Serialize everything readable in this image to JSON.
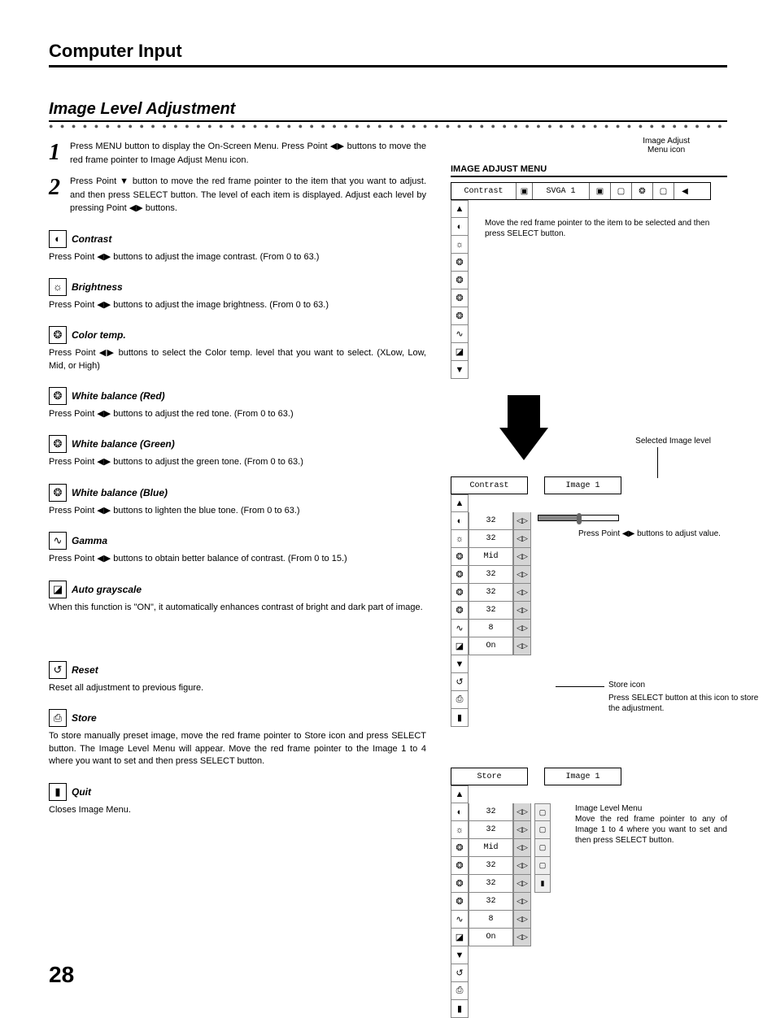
{
  "page_number": "28",
  "header": "Computer Input",
  "section_title": "Image Level Adjustment",
  "steps": [
    {
      "num": "1",
      "text": "Press MENU button to display the On-Screen Menu.  Press Point ◀▶ buttons to move the red frame pointer to Image Adjust Menu icon."
    },
    {
      "num": "2",
      "text": "Press Point ▼ button to move the red frame pointer to the item that you want to adjust. and then press SELECT button.  The level of each item is displayed.  Adjust each level by pressing Point ◀▶ buttons."
    }
  ],
  "items": [
    {
      "icon": "contrast",
      "title": "Contrast",
      "desc": "Press Point ◀▶ buttons to adjust the image contrast. (From 0 to 63.)"
    },
    {
      "icon": "brightness",
      "title": "Brightness",
      "desc": "Press Point ◀▶ buttons to adjust the image brightness.  (From 0 to 63.)"
    },
    {
      "icon": "colortemp",
      "title": "Color temp.",
      "desc": "Press Point ◀▶ buttons to select the Color temp. level that you want to select. (XLow, Low, Mid, or High)"
    },
    {
      "icon": "wb-red",
      "title": "White balance (Red)",
      "desc": "Press Point ◀▶ buttons to adjust the red tone.  (From 0 to 63.)"
    },
    {
      "icon": "wb-green",
      "title": "White balance (Green)",
      "desc": "Press Point ◀▶ buttons to adjust the green tone.  (From 0 to 63.)"
    },
    {
      "icon": "wb-blue",
      "title": "White balance (Blue)",
      "desc": "Press Point ◀▶ buttons to lighten the blue tone.  (From 0 to 63.)"
    },
    {
      "icon": "gamma",
      "title": "Gamma",
      "desc": "Press Point ◀▶ buttons to obtain better balance of contrast. (From 0 to 15.)"
    },
    {
      "icon": "autogray",
      "title": "Auto grayscale",
      "desc": "When this function is \"ON\", it automatically enhances contrast of bright and dark part of image."
    }
  ],
  "items2": [
    {
      "icon": "reset",
      "title": "Reset",
      "desc": "Reset all adjustment to previous figure."
    },
    {
      "icon": "store",
      "title": "Store",
      "desc": "To store manually preset image, move the red frame pointer to Store icon and press SELECT button.  The Image Level Menu will appear.  Move the red frame pointer to the Image 1 to 4 where you want to set and then press SELECT button."
    },
    {
      "icon": "quit",
      "title": "Quit",
      "desc": "Closes Image Menu."
    }
  ],
  "right": {
    "top_annot": "Image Adjust\nMenu icon",
    "menu_title": "IMAGE ADJUST MENU",
    "menubar_label": "Contrast",
    "menubar_mode": "SVGA 1",
    "annot_move": "Move the red frame pointer to the item to be selected and then press SELECT button.",
    "selected_label": "Selected Image level",
    "panel2_label": "Contrast",
    "panel2_image": "Image 1",
    "annot_press": "Press Point ◀▶ buttons to adjust value.",
    "store_icon_label": "Store icon",
    "store_desc": "Press SELECT button at this icon to store the adjustment.",
    "panel3_label": "Store",
    "panel3_image": "Image 1",
    "img_level_title": "Image Level Menu",
    "img_level_desc": "Move the red frame pointer to any of Image 1 to 4 where you want to set  and then press SELECT button.",
    "vals1": [
      "32",
      "32",
      "Mid",
      "32",
      "32",
      "32",
      "8",
      "On"
    ],
    "vals2": [
      "32",
      "32",
      "Mid",
      "32",
      "32",
      "32",
      "8",
      "On"
    ]
  },
  "icons": {
    "contrast": "◐",
    "brightness": "☼",
    "colortemp": "❂",
    "wb-red": "❂",
    "wb-green": "❂",
    "wb-blue": "❂",
    "gamma": "∿",
    "autogray": "◪",
    "reset": "↺",
    "store": "⎙",
    "quit": "▮",
    "up": "▲",
    "down": "▼",
    "lr": "◁▷",
    "img": "▢"
  }
}
